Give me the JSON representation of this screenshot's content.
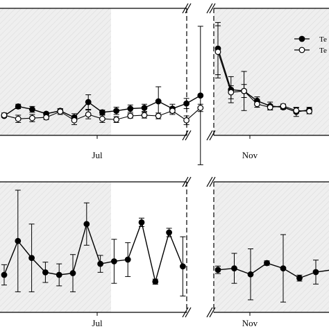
{
  "chart_data": [
    {
      "type": "line",
      "panel": "top-left",
      "xticks": [
        "Jul"
      ],
      "shaded_region": "left portion (diagonal hatch)",
      "axis_break": "right edge",
      "series": [
        {
          "name": "",
          "marker": "filled-circle",
          "points": [
            {
              "x": 0,
              "y": 0.0,
              "err": 0.02
            },
            {
              "x": 1,
              "y": 0.13,
              "err": 0.03
            },
            {
              "x": 2,
              "y": 0.09,
              "err": 0.04
            },
            {
              "x": 3,
              "y": 0.03,
              "err": 0.02
            },
            {
              "x": 4,
              "y": 0.07,
              "err": 0.03
            },
            {
              "x": 5,
              "y": -0.02,
              "err": 0.05
            },
            {
              "x": 6,
              "y": 0.19,
              "err": 0.1
            },
            {
              "x": 7,
              "y": 0.05,
              "err": 0.03
            },
            {
              "x": 8,
              "y": 0.07,
              "err": 0.05
            },
            {
              "x": 9,
              "y": 0.1,
              "err": 0.05
            },
            {
              "x": 10,
              "y": 0.11,
              "err": 0.05
            },
            {
              "x": 11,
              "y": 0.2,
              "err": 0.2
            },
            {
              "x": 12,
              "y": 0.1,
              "err": 0.06
            },
            {
              "x": 13,
              "y": 0.17,
              "err": 0.07
            },
            {
              "x": 14,
              "y": 0.28,
              "err": 0.95
            }
          ]
        },
        {
          "name": "",
          "marker": "open-circle",
          "points": [
            {
              "x": 0,
              "y": 0.01,
              "err": 0.03
            },
            {
              "x": 1,
              "y": -0.04,
              "err": 0.05
            },
            {
              "x": 2,
              "y": -0.03,
              "err": 0.05
            },
            {
              "x": 3,
              "y": -0.02,
              "err": 0.03
            },
            {
              "x": 4,
              "y": 0.06,
              "err": 0.04
            },
            {
              "x": 5,
              "y": -0.06,
              "err": 0.06
            },
            {
              "x": 6,
              "y": 0.02,
              "err": 0.06
            },
            {
              "x": 7,
              "y": -0.04,
              "err": 0.05
            },
            {
              "x": 8,
              "y": -0.05,
              "err": 0.04
            },
            {
              "x": 9,
              "y": 0.0,
              "err": 0.03
            },
            {
              "x": 10,
              "y": 0.01,
              "err": 0.04
            },
            {
              "x": 11,
              "y": 0.0,
              "err": 0.04
            },
            {
              "x": 12,
              "y": 0.07,
              "err": 0.05
            },
            {
              "x": 13,
              "y": -0.06,
              "err": 0.06
            },
            {
              "x": 14,
              "y": 0.11,
              "err": 0.05
            }
          ]
        }
      ]
    },
    {
      "type": "line",
      "panel": "top-right",
      "xticks": [
        "Nov"
      ],
      "shaded_region": "whole panel (diagonal hatch)",
      "axis_break": "left edge",
      "legend": {
        "placement": "top-right",
        "entries": [
          {
            "label": "Te",
            "marker": "filled-circle"
          },
          {
            "label": "Te",
            "marker": "open-circle"
          }
        ]
      },
      "series": [
        {
          "name": "Te",
          "marker": "filled-circle",
          "points": [
            {
              "x": 0,
              "y": 1.0,
              "err": 0.4
            },
            {
              "x": 1,
              "y": 0.37,
              "err": 0.2
            },
            {
              "x": 2,
              "y": 0.35,
              "err": 0.1
            },
            {
              "x": 3,
              "y": 0.2,
              "err": 0.06
            },
            {
              "x": 4,
              "y": 0.12,
              "err": 0.06
            },
            {
              "x": 5,
              "y": 0.1,
              "err": 0.03
            },
            {
              "x": 6,
              "y": 0.03,
              "err": 0.07
            },
            {
              "x": 7,
              "y": 0.06,
              "err": 0.04
            }
          ]
        },
        {
          "name": "Te",
          "marker": "open-circle",
          "points": [
            {
              "x": 0,
              "y": 0.95,
              "err": 0.4
            },
            {
              "x": 1,
              "y": 0.33,
              "err": 0.1
            },
            {
              "x": 2,
              "y": 0.35,
              "err": 0.3
            },
            {
              "x": 3,
              "y": 0.15,
              "err": 0.05
            },
            {
              "x": 4,
              "y": 0.1,
              "err": 0.04
            },
            {
              "x": 5,
              "y": 0.12,
              "err": 0.03
            },
            {
              "x": 6,
              "y": 0.05,
              "err": 0.04
            },
            {
              "x": 7,
              "y": 0.04,
              "err": 0.04
            }
          ]
        }
      ]
    },
    {
      "type": "line",
      "panel": "bottom-left",
      "xticks": [
        "Jul"
      ],
      "shaded_region": "left portion (diagonal hatch)",
      "axis_break": "right edge",
      "series": [
        {
          "name": "",
          "marker": "filled-circle",
          "points": [
            {
              "x": 0,
              "y": 0.0,
              "err": 0.12
            },
            {
              "x": 1,
              "y": 0.4,
              "err": 0.6
            },
            {
              "x": 2,
              "y": 0.2,
              "err": 0.4
            },
            {
              "x": 3,
              "y": 0.03,
              "err": 0.12
            },
            {
              "x": 4,
              "y": 0.0,
              "err": 0.13
            },
            {
              "x": 5,
              "y": 0.02,
              "err": 0.22
            },
            {
              "x": 6,
              "y": 0.6,
              "err": 0.25
            },
            {
              "x": 7,
              "y": 0.13,
              "err": 0.1
            },
            {
              "x": 8,
              "y": 0.16,
              "err": 0.26
            },
            {
              "x": 9,
              "y": 0.18,
              "err": 0.2
            },
            {
              "x": 10,
              "y": 0.62,
              "err": 0.05
            },
            {
              "x": 11,
              "y": -0.08,
              "err": 0.03
            },
            {
              "x": 12,
              "y": 0.5,
              "err": 0.05
            },
            {
              "x": 13,
              "y": 0.1,
              "err": 0.35
            }
          ]
        }
      ]
    },
    {
      "type": "line",
      "panel": "bottom-right",
      "xticks": [
        "Nov"
      ],
      "shaded_region": "whole panel (diagonal hatch)",
      "axis_break": "left edge",
      "series": [
        {
          "name": "",
          "marker": "filled-circle",
          "points": [
            {
              "x": 0,
              "y": 0.03,
              "err": 0.05
            },
            {
              "x": 1,
              "y": 0.05,
              "err": 0.2
            },
            {
              "x": 2,
              "y": -0.03,
              "err": 0.34
            },
            {
              "x": 3,
              "y": 0.12,
              "err": 0.03
            },
            {
              "x": 4,
              "y": 0.05,
              "err": 0.45
            },
            {
              "x": 5,
              "y": -0.08,
              "err": 0.04
            },
            {
              "x": 6,
              "y": 0.0,
              "err": 0.16
            },
            {
              "x": 7,
              "y": 0.03,
              "err": 0.1
            }
          ]
        }
      ]
    }
  ]
}
